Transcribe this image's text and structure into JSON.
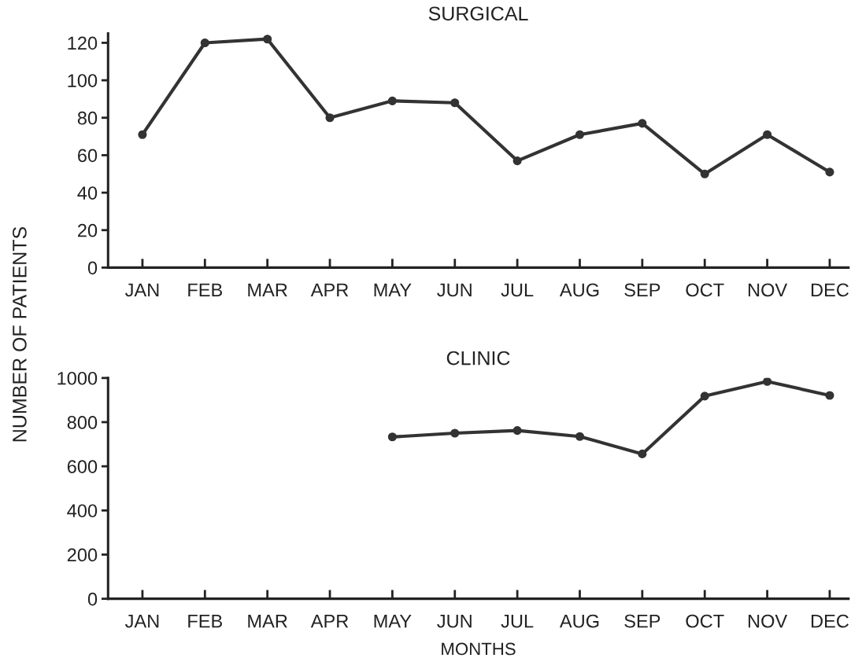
{
  "chart_data": [
    {
      "type": "line",
      "title": "SURGICAL",
      "ylabel": "NUMBER OF PATIENTS",
      "categories": [
        "JAN",
        "FEB",
        "MAR",
        "APR",
        "MAY",
        "JUN",
        "JUL",
        "AUG",
        "SEP",
        "OCT",
        "NOV",
        "DEC"
      ],
      "series": [
        {
          "color": "#333333",
          "values": [
            71,
            120,
            122,
            80,
            89,
            88,
            57,
            71,
            77,
            50,
            71,
            51
          ]
        }
      ],
      "ylim": [
        0,
        125
      ],
      "yticks": [
        0,
        20,
        40,
        60,
        80,
        100,
        120
      ],
      "marker": "circle",
      "line_style": "solid",
      "grid": false,
      "legend": false
    },
    {
      "type": "line",
      "title": "CLINIC",
      "xlabel": "MONTHS",
      "categories": [
        "JAN",
        "FEB",
        "MAR",
        "APR",
        "MAY",
        "JUN",
        "JUL",
        "AUG",
        "SEP",
        "OCT",
        "NOV",
        "DEC"
      ],
      "series": [
        {
          "color": "#333333",
          "values": [
            null,
            null,
            null,
            null,
            733,
            750,
            762,
            735,
            656,
            918,
            984,
            921
          ]
        }
      ],
      "ylim": [
        0,
        1000
      ],
      "yticks": [
        0,
        200,
        400,
        600,
        800,
        1000
      ],
      "marker": "circle",
      "line_style": "solid",
      "grid": false,
      "legend": false
    }
  ]
}
